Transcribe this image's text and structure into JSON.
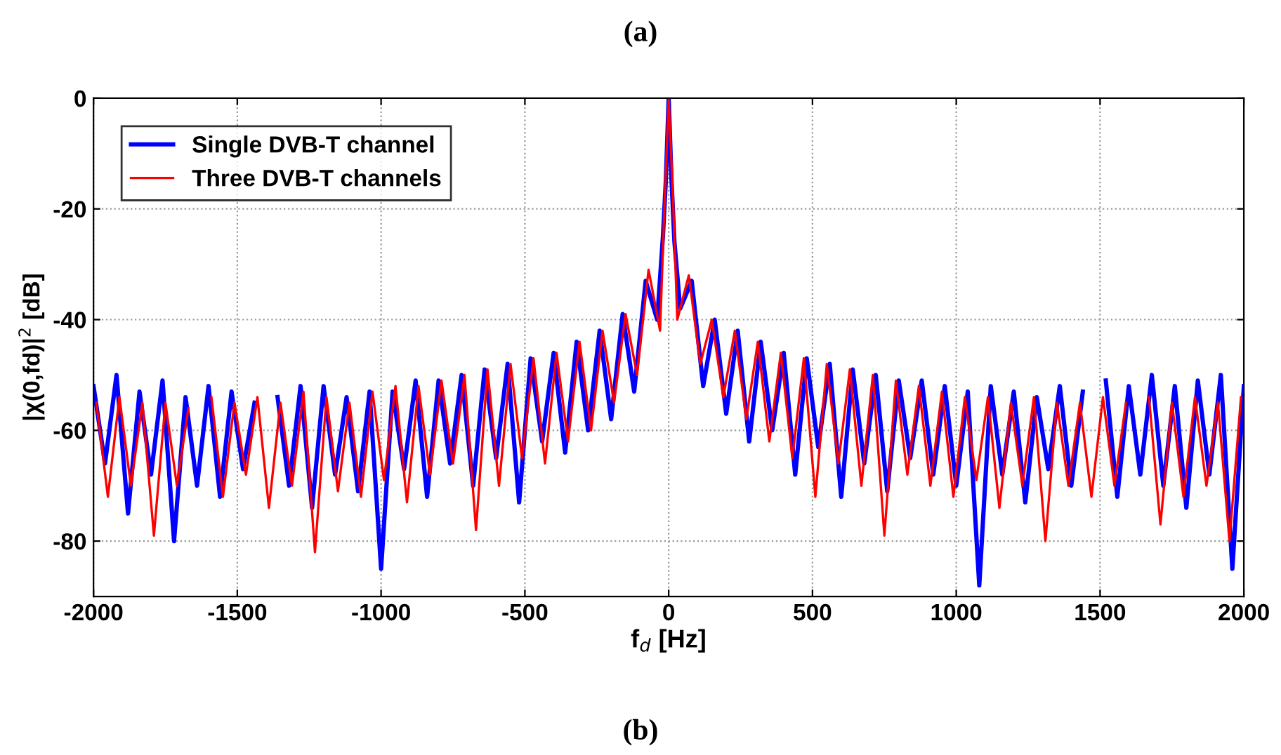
{
  "chart_data": {
    "type": "line",
    "xlabel": "f$_{d}$ [Hz]",
    "ylabel": "|χ(0,fd)|$^{2}$ [dB]",
    "annotations": [
      "(a)",
      "(b)"
    ],
    "xlim": [
      -2000,
      2000
    ],
    "xticks": [
      -2000,
      -1500,
      -1000,
      -500,
      0,
      500,
      1000,
      1500,
      2000
    ],
    "ylim": [
      -90,
      0
    ],
    "yticks": [
      -80,
      -60,
      -40,
      -20,
      0
    ],
    "grid": true,
    "legend": "top left",
    "line_style": "solid",
    "series": [
      {
        "name": "Single DVB-T channel",
        "color": "#0000ff",
        "x": [
          -2000,
          -1960,
          -1920,
          -1880,
          -1840,
          -1800,
          -1760,
          -1720,
          -1680,
          -1640,
          -1600,
          -1560,
          -1520,
          -1480,
          -1440,
          -1400,
          -1360,
          -1320,
          -1280,
          -1240,
          -1200,
          -1160,
          -1120,
          -1080,
          -1040,
          -1000,
          -960,
          -920,
          -880,
          -840,
          -800,
          -760,
          -720,
          -680,
          -640,
          -600,
          -560,
          -520,
          -480,
          -440,
          -400,
          -360,
          -320,
          -280,
          -240,
          -200,
          -160,
          -120,
          -80,
          -40,
          -20,
          -10,
          0,
          10,
          20,
          40,
          80,
          120,
          160,
          200,
          240,
          280,
          320,
          360,
          400,
          440,
          480,
          520,
          560,
          600,
          640,
          680,
          720,
          760,
          800,
          840,
          880,
          920,
          960,
          1000,
          1040,
          1080,
          1120,
          1160,
          1200,
          1240,
          1280,
          1320,
          1360,
          1400,
          1440,
          1480,
          1520,
          1560,
          1600,
          1640,
          1680,
          1720,
          1760,
          1800,
          1840,
          1880,
          1920,
          1960,
          2000
        ],
        "values": [
          -52,
          -66,
          -50,
          -75,
          -53,
          -68,
          -51,
          -80,
          -54,
          -70,
          -52,
          -72,
          -53,
          -67,
          -55,
          null,
          -54,
          -70,
          -52,
          -74,
          -52,
          -68,
          -54,
          -71,
          -53,
          -85,
          -53,
          -67,
          -51,
          -72,
          -51,
          -66,
          -50,
          -70,
          -49,
          -65,
          -48,
          -73,
          -47,
          -62,
          -46,
          -64,
          -44,
          -60,
          -42,
          -58,
          -39,
          -53,
          -33,
          -40,
          -25,
          -15,
          0,
          -15,
          -26,
          -38,
          -33,
          -52,
          -40,
          -57,
          -42,
          -62,
          -44,
          -60,
          -46,
          -68,
          -47,
          -63,
          -48,
          -72,
          -49,
          -66,
          -50,
          -71,
          -51,
          -65,
          -51,
          -68,
          -52,
          -70,
          -53,
          -88,
          -52,
          -68,
          -53,
          -73,
          -54,
          -67,
          -52,
          -70,
          -53,
          null,
          -51,
          -72,
          -52,
          -68,
          -50,
          -70,
          -52,
          -74,
          -51,
          -68,
          -50,
          -85,
          -52
        ]
      },
      {
        "name": "Three DVB-T channels",
        "color": "#ff0000",
        "x": [
          -1990,
          -1950,
          -1910,
          -1870,
          -1830,
          -1790,
          -1750,
          -1710,
          -1670,
          -1630,
          -1590,
          -1550,
          -1510,
          -1470,
          -1430,
          -1390,
          -1350,
          -1310,
          -1270,
          -1230,
          -1190,
          -1150,
          -1110,
          -1070,
          -1030,
          -990,
          -950,
          -910,
          -870,
          -830,
          -790,
          -750,
          -710,
          -670,
          -630,
          -590,
          -550,
          -510,
          -470,
          -430,
          -390,
          -350,
          -310,
          -270,
          -230,
          -190,
          -150,
          -110,
          -70,
          -30,
          -15,
          0,
          15,
          30,
          70,
          110,
          150,
          190,
          230,
          270,
          310,
          350,
          390,
          430,
          470,
          510,
          550,
          590,
          630,
          670,
          710,
          750,
          790,
          830,
          870,
          910,
          950,
          990,
          1030,
          1070,
          1110,
          1150,
          1190,
          1230,
          1270,
          1310,
          1350,
          1390,
          1430,
          1470,
          1510,
          1550,
          1590,
          1630,
          1670,
          1710,
          1750,
          1790,
          1830,
          1870,
          1910,
          1950,
          1990
        ],
        "values": [
          -55,
          -72,
          -54,
          -70,
          -55,
          -79,
          -55,
          -70,
          -56,
          null,
          -54,
          -72,
          -55,
          -68,
          -54,
          -74,
          -55,
          -70,
          -53,
          -82,
          -54,
          -71,
          -55,
          -72,
          -53,
          -69,
          -52,
          -73,
          -52,
          -68,
          -51,
          -66,
          -50,
          -78,
          -49,
          -70,
          -48,
          -65,
          -47,
          -66,
          -46,
          -62,
          -44,
          -60,
          -42,
          -55,
          -39,
          -50,
          -31,
          -42,
          -20,
          0,
          -18,
          -40,
          -32,
          -48,
          -40,
          -54,
          -42,
          -58,
          -44,
          -62,
          -46,
          -65,
          -47,
          -72,
          -48,
          -66,
          -49,
          -70,
          -50,
          -79,
          -51,
          -68,
          -52,
          -70,
          -53,
          -72,
          -54,
          -69,
          -54,
          -74,
          -55,
          -70,
          -54,
          -80,
          -55,
          -70,
          -55,
          -72,
          -54,
          -70,
          -55,
          null,
          -54,
          -77,
          -55,
          -72,
          -54,
          -70,
          -55,
          -80,
          -54
        ]
      }
    ]
  }
}
